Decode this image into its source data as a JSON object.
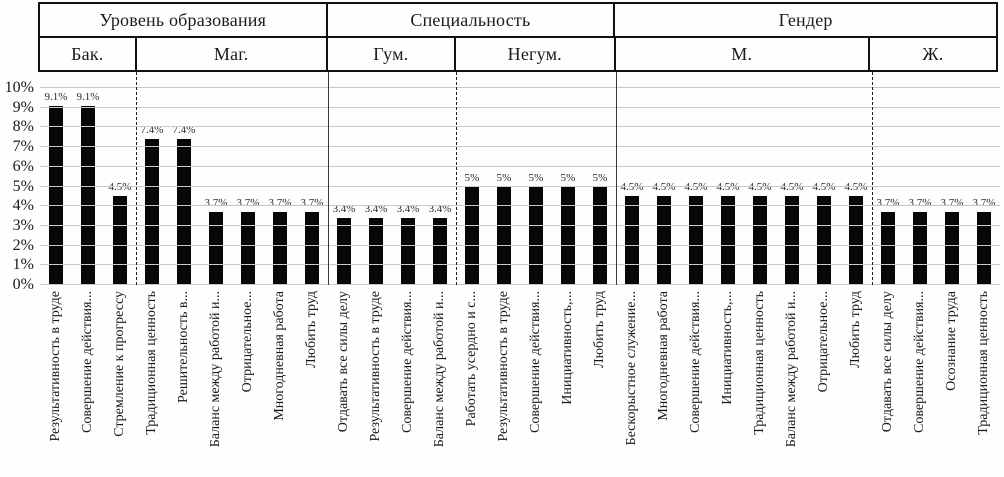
{
  "figure": {
    "background": "#fefefe",
    "grid_color": "#c9c9c9",
    "bar_color": "#060606",
    "text_color": "#1a1a1a"
  },
  "chart_data": {
    "type": "bar",
    "title": "",
    "xlabel": "",
    "ylabel": "",
    "ylim": [
      0,
      10
    ],
    "yticks": [
      "0%",
      "1%",
      "2%",
      "3%",
      "4%",
      "5%",
      "6%",
      "7%",
      "8%",
      "9%",
      "10%"
    ],
    "grid": true,
    "legend": false,
    "sections": [
      {
        "group": "Уровень образования",
        "name": "Бак.",
        "bars": [
          {
            "label": "Результативность в труде",
            "value": 9.1,
            "display": "9.1%"
          },
          {
            "label": "Совершение действия...",
            "value": 9.1,
            "display": "9.1%"
          },
          {
            "label": "Стремление к прогрессу",
            "value": 4.5,
            "display": "4.5%"
          }
        ]
      },
      {
        "group": "Уровень образования",
        "name": "Маг.",
        "bars": [
          {
            "label": "Традиционная ценность",
            "value": 7.4,
            "display": "7.4%"
          },
          {
            "label": "Решительность в...",
            "value": 7.4,
            "display": "7.4%"
          },
          {
            "label": "Баланс между работой и...",
            "value": 3.7,
            "display": "3.7%"
          },
          {
            "label": "Отрицательное...",
            "value": 3.7,
            "display": "3.7%"
          },
          {
            "label": "Многодневная работа",
            "value": 3.7,
            "display": "3.7%"
          },
          {
            "label": "Любить труд",
            "value": 3.7,
            "display": "3.7%"
          }
        ]
      },
      {
        "group": "Специальность",
        "name": "Гум.",
        "bars": [
          {
            "label": "Отдавать все силы делу",
            "value": 3.4,
            "display": "3.4%"
          },
          {
            "label": "Результативность в труде",
            "value": 3.4,
            "display": "3.4%"
          },
          {
            "label": "Совершение действия...",
            "value": 3.4,
            "display": "3.4%"
          },
          {
            "label": "Баланс между работой и...",
            "value": 3.4,
            "display": "3.4%"
          }
        ]
      },
      {
        "group": "Специальность",
        "name": "Негум.",
        "bars": [
          {
            "label": "Работать усердно и с...",
            "value": 5,
            "display": "5%"
          },
          {
            "label": "Результативность в труде",
            "value": 5,
            "display": "5%"
          },
          {
            "label": "Совершение действия...",
            "value": 5,
            "display": "5%"
          },
          {
            "label": "Инициативность,...",
            "value": 5,
            "display": "5%"
          },
          {
            "label": "Любить труд",
            "value": 5,
            "display": "5%"
          }
        ]
      },
      {
        "group": "Гендер",
        "name": "М.",
        "bars": [
          {
            "label": "Бескорыстное служение...",
            "value": 4.5,
            "display": "4.5%"
          },
          {
            "label": "Многодневная работа",
            "value": 4.5,
            "display": "4.5%"
          },
          {
            "label": "Совершение действия...",
            "value": 4.5,
            "display": "4.5%"
          },
          {
            "label": "Инициативность,...",
            "value": 4.5,
            "display": "4.5%"
          },
          {
            "label": "Традиционная ценность",
            "value": 4.5,
            "display": "4.5%"
          },
          {
            "label": "Баланс между работой и...",
            "value": 4.5,
            "display": "4.5%"
          },
          {
            "label": "Отрицательное...",
            "value": 4.5,
            "display": "4.5%"
          },
          {
            "label": "Любить труд",
            "value": 4.5,
            "display": "4.5%"
          }
        ]
      },
      {
        "group": "Гендер",
        "name": "Ж.",
        "bars": [
          {
            "label": "Отдавать все силы делу",
            "value": 3.7,
            "display": "3.7%"
          },
          {
            "label": "Совершение действия...",
            "value": 3.7,
            "display": "3.7%"
          },
          {
            "label": "Осознание труда",
            "value": 3.7,
            "display": "3.7%"
          },
          {
            "label": "Традиционная ценность",
            "value": 3.7,
            "display": "3.7%"
          }
        ]
      }
    ]
  }
}
